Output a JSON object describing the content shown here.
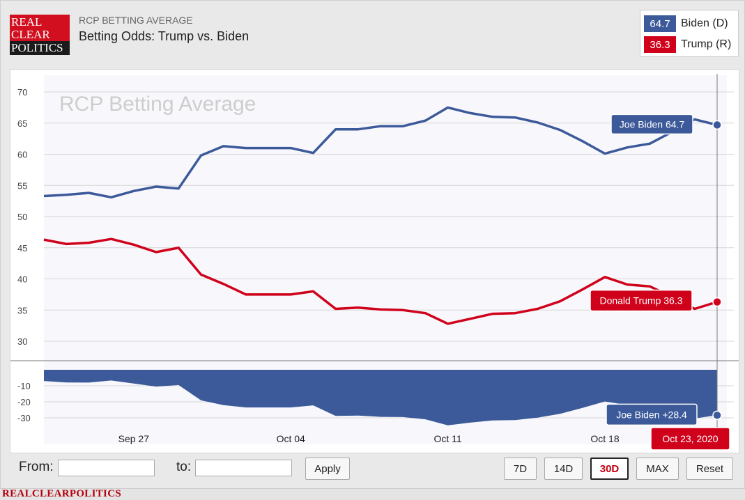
{
  "header": {
    "logo_lines": [
      "REAL",
      "CLEAR",
      "POLITICS"
    ],
    "supertitle": "RCP BETTING AVERAGE",
    "title": "Betting Odds: Trump vs. Biden"
  },
  "legend": [
    {
      "value": "64.7",
      "name": "Biden (D)",
      "color": "#3c5a9a"
    },
    {
      "value": "36.3",
      "name": "Trump (R)",
      "color": "#d0021b"
    }
  ],
  "controls": {
    "from_label": "From:",
    "to_label": "to:",
    "from_value": "",
    "to_value": "",
    "apply_label": "Apply",
    "range_buttons": [
      "7D",
      "14D",
      "30D",
      "MAX"
    ],
    "active_range": "30D",
    "reset_label": "Reset"
  },
  "footer": "REALCLEARPOLITICS",
  "chart_data": {
    "type": "line",
    "watermark": "RCP Betting Average",
    "x": [
      "2020-09-23",
      "2020-09-24",
      "2020-09-25",
      "2020-09-26",
      "2020-09-27",
      "2020-09-28",
      "2020-09-29",
      "2020-09-30",
      "2020-10-01",
      "2020-10-02",
      "2020-10-03",
      "2020-10-04",
      "2020-10-05",
      "2020-10-06",
      "2020-10-07",
      "2020-10-08",
      "2020-10-09",
      "2020-10-10",
      "2020-10-11",
      "2020-10-12",
      "2020-10-13",
      "2020-10-14",
      "2020-10-15",
      "2020-10-16",
      "2020-10-17",
      "2020-10-18",
      "2020-10-19",
      "2020-10-20",
      "2020-10-21",
      "2020-10-22",
      "2020-10-23"
    ],
    "x_ticks": [
      {
        "date": "2020-09-27",
        "label": "Sep 27"
      },
      {
        "date": "2020-10-04",
        "label": "Oct 04"
      },
      {
        "date": "2020-10-11",
        "label": "Oct 11"
      },
      {
        "date": "2020-10-18",
        "label": "Oct 18"
      }
    ],
    "series": [
      {
        "name": "Joe Biden",
        "color": "#3c5a9a",
        "values": [
          53.3,
          53.5,
          53.8,
          53.1,
          54.1,
          54.8,
          54.5,
          59.8,
          61.3,
          61.0,
          61.0,
          61.0,
          60.2,
          64.0,
          64.0,
          64.5,
          64.5,
          65.4,
          67.5,
          66.6,
          66.0,
          65.9,
          65.1,
          63.9,
          62.1,
          60.1,
          61.1,
          61.7,
          63.6,
          65.6,
          64.7
        ]
      },
      {
        "name": "Donald Trump",
        "color": "#d0021b",
        "values": [
          46.3,
          45.6,
          45.8,
          46.4,
          45.5,
          44.3,
          45.0,
          40.7,
          39.2,
          37.5,
          37.5,
          37.5,
          38.0,
          35.2,
          35.4,
          35.1,
          35.0,
          34.5,
          32.8,
          33.6,
          34.4,
          34.5,
          35.2,
          36.4,
          38.3,
          40.3,
          39.1,
          38.8,
          37.1,
          35.2,
          36.3
        ]
      }
    ],
    "spread": {
      "color": "#3c5a9a",
      "values": [
        7.0,
        7.9,
        8.0,
        6.7,
        8.6,
        10.5,
        9.5,
        19.1,
        22.1,
        23.5,
        23.5,
        23.5,
        22.2,
        28.8,
        28.6,
        29.4,
        29.5,
        30.9,
        34.7,
        33.0,
        31.6,
        31.4,
        29.9,
        27.5,
        23.8,
        19.8,
        22.0,
        22.9,
        26.5,
        30.4,
        28.4
      ]
    },
    "y_main": {
      "ticks": [
        "70",
        "65",
        "60",
        "55",
        "50",
        "45",
        "40",
        "35",
        "30"
      ],
      "ylim": [
        30,
        70
      ]
    },
    "y_spread": {
      "ticks": [
        "-10",
        "-20",
        "-30"
      ],
      "ylim": [
        0,
        -30
      ]
    },
    "grid": true,
    "tooltips": {
      "biden": "Joe Biden 64.7",
      "trump": "Donald Trump 36.3",
      "spread": "Joe Biden +28.4",
      "date": "Oct 23, 2020"
    }
  }
}
